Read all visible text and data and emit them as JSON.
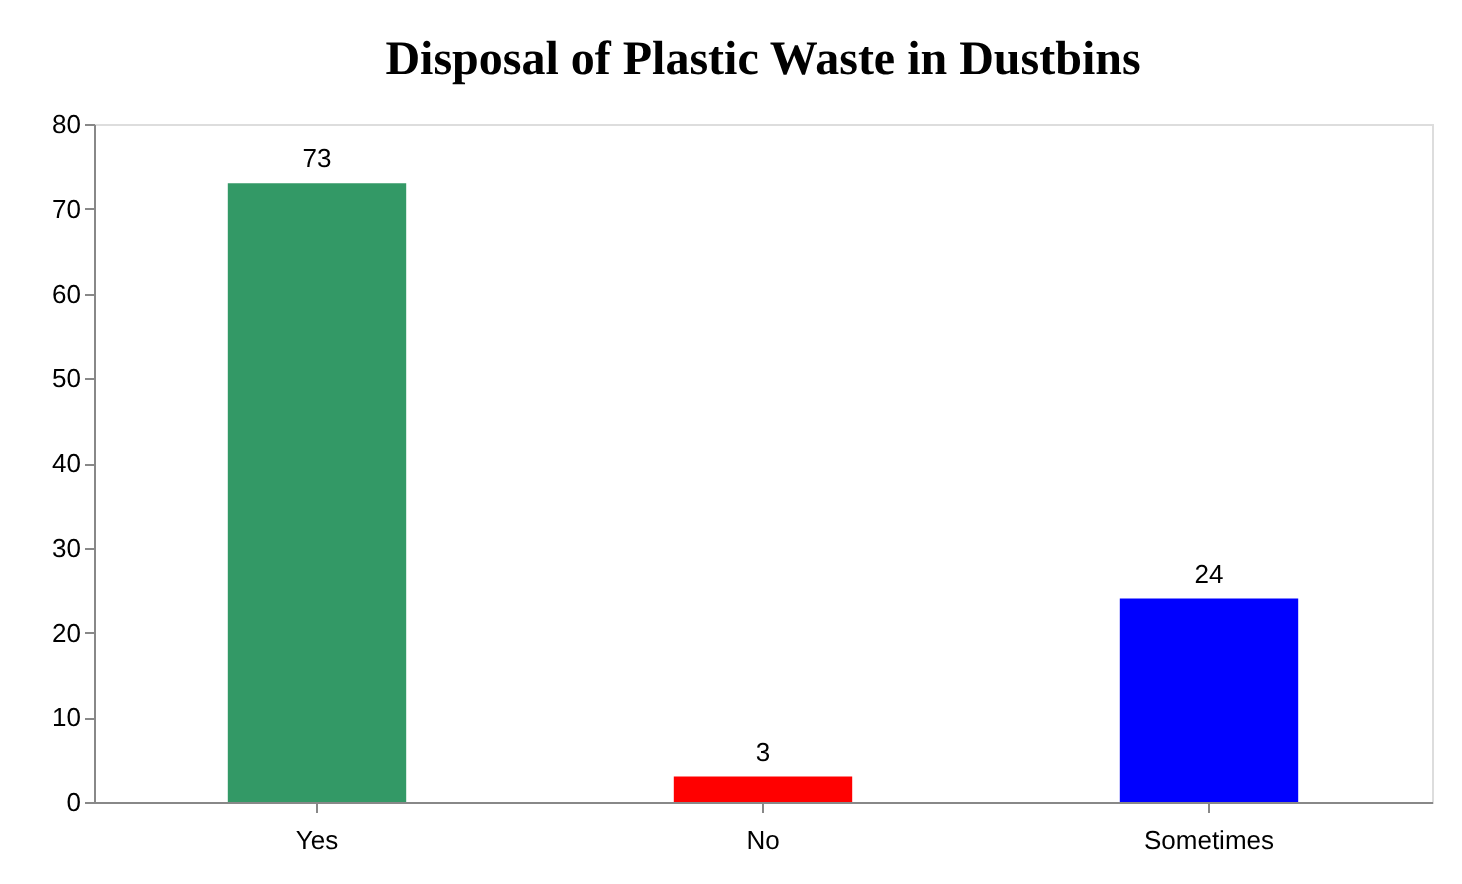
{
  "chart_data": {
    "type": "bar",
    "title": "Disposal of Plastic Waste in Dustbins",
    "categories": [
      "Yes",
      "No",
      "Sometimes"
    ],
    "values": [
      73,
      3,
      24
    ],
    "colors": [
      "#339966",
      "#ff0000",
      "#0000ff"
    ],
    "ylim": [
      0,
      80
    ],
    "yticks": [
      0,
      10,
      20,
      30,
      40,
      50,
      60,
      70,
      80
    ],
    "grid": false,
    "legend": false,
    "data_labels": true
  }
}
